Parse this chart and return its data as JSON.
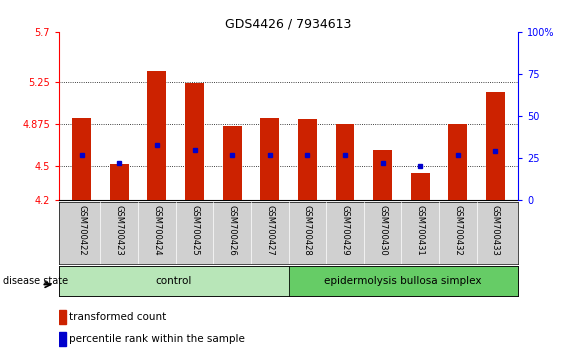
{
  "title": "GDS4426 / 7934613",
  "samples": [
    "GSM700422",
    "GSM700423",
    "GSM700424",
    "GSM700425",
    "GSM700426",
    "GSM700427",
    "GSM700428",
    "GSM700429",
    "GSM700430",
    "GSM700431",
    "GSM700432",
    "GSM700433"
  ],
  "red_values": [
    4.93,
    4.52,
    5.35,
    5.24,
    4.86,
    4.93,
    4.92,
    4.88,
    4.65,
    4.44,
    4.88,
    5.16
  ],
  "blue_values_pct": [
    27,
    22,
    33,
    30,
    27,
    27,
    27,
    27,
    22,
    20,
    27,
    29
  ],
  "ylim_left": [
    4.2,
    5.7
  ],
  "ylim_right": [
    0,
    100
  ],
  "yticks_left": [
    4.2,
    4.5,
    4.875,
    5.25,
    5.7
  ],
  "yticks_right": [
    0,
    25,
    50,
    75,
    100
  ],
  "ytick_labels_left": [
    "4.2",
    "4.5",
    "4.875",
    "5.25",
    "5.7"
  ],
  "ytick_labels_right": [
    "0",
    "25",
    "50",
    "75",
    "100%"
  ],
  "hlines": [
    4.5,
    4.875,
    5.25
  ],
  "bar_color": "#cc2200",
  "marker_color": "#0000cc",
  "bar_bottom": 4.2,
  "n_control": 6,
  "n_disease": 6,
  "control_label": "control",
  "disease_label": "epidermolysis bullosa simplex",
  "disease_state_label": "disease state",
  "legend_red": "transformed count",
  "legend_blue": "percentile rank within the sample",
  "control_color": "#b8e6b8",
  "disease_color": "#66cc66",
  "xticklabel_bg": "#d0d0d0",
  "bar_width": 0.5,
  "figsize": [
    5.63,
    3.54
  ],
  "dpi": 100
}
